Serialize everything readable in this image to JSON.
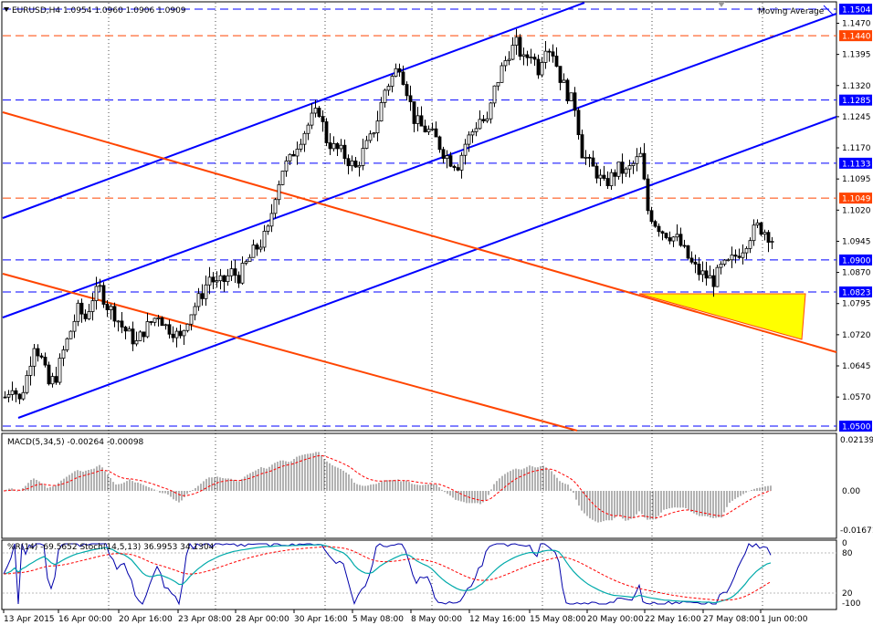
{
  "header": {
    "symbol_line": "EURUSD,H4  1.0954 1.0960 1.0906 1.0909",
    "indicator_label": "Moving Average",
    "macd_label": "MACD(5,34,5) -0.00264 -0.00098",
    "wr_label": "%R(14) -69.5652  Stoch(14,5,13) 36.9953 34.1304"
  },
  "colors": {
    "background": "#ffffff",
    "candles": "#000000",
    "blue_lines": "#0000ff",
    "red_lines": "#ff4500",
    "triangle_fill": "#ffff00",
    "stoch_main": "#00aaaa",
    "stoch_signal": "#ff0000",
    "price_tag": "#0000ff",
    "red_tag": "#ff4500"
  },
  "chart_data": {
    "type": "candlestick",
    "symbol": "EURUSD",
    "timeframe": "H4",
    "ohlc_last": {
      "open": 1.0954,
      "high": 1.096,
      "low": 1.0906,
      "close": 1.0909
    },
    "y_ticks": [
      "1.1470",
      "1.1395",
      "1.1320",
      "1.1245",
      "1.1170",
      "1.1095",
      "1.1020",
      "1.0945",
      "1.0870",
      "1.0795",
      "1.0720",
      "1.0645",
      "1.0570"
    ],
    "y_range": [
      1.05,
      1.1504
    ],
    "x_labels": [
      "13 Apr 2015",
      "16 Apr 00:00",
      "20 Apr 16:00",
      "23 Apr 08:00",
      "28 Apr 00:00",
      "30 Apr 16:00",
      "5 May 08:00",
      "8 May 00:00",
      "12 May 16:00",
      "15 May 08:00",
      "20 May 00:00",
      "22 May 16:00",
      "27 May 08:00",
      "1 Jun 00:00"
    ],
    "levels": [
      {
        "label": "1.1504",
        "value": 1.1504,
        "color": "#0000ff"
      },
      {
        "label": "1.1440",
        "value": 1.144,
        "color": "#ff4500"
      },
      {
        "label": "1.1285",
        "value": 1.1285,
        "color": "#0000ff"
      },
      {
        "label": "1.1133",
        "value": 1.1133,
        "color": "#0000ff"
      },
      {
        "label": "1.1049",
        "value": 1.1049,
        "color": "#ff4500"
      },
      {
        "label": "1.0900",
        "value": 1.09,
        "color": "#0000ff"
      },
      {
        "label": "1.0823",
        "value": 1.0823,
        "color": "#0000ff"
      },
      {
        "label": "1.0500",
        "value": 1.05,
        "color": "#0000ff"
      }
    ],
    "price_path": [
      [
        0,
        1.057
      ],
      [
        8,
        1.06
      ],
      [
        16,
        1.056
      ],
      [
        24,
        1.062
      ],
      [
        32,
        1.07
      ],
      [
        40,
        1.066
      ],
      [
        48,
        1.06
      ],
      [
        56,
        1.062
      ],
      [
        64,
        1.068
      ],
      [
        72,
        1.073
      ],
      [
        80,
        1.078
      ],
      [
        88,
        1.076
      ],
      [
        96,
        1.081
      ],
      [
        104,
        1.083
      ],
      [
        112,
        1.079
      ],
      [
        120,
        1.077
      ],
      [
        128,
        1.074
      ],
      [
        136,
        1.072
      ],
      [
        144,
        1.07
      ],
      [
        152,
        1.073
      ],
      [
        160,
        1.075
      ],
      [
        168,
        1.077
      ],
      [
        176,
        1.074
      ],
      [
        184,
        1.073
      ],
      [
        192,
        1.071
      ],
      [
        200,
        1.076
      ],
      [
        208,
        1.079
      ],
      [
        216,
        1.082
      ],
      [
        224,
        1.086
      ],
      [
        232,
        1.084
      ],
      [
        240,
        1.085
      ],
      [
        248,
        1.087
      ],
      [
        256,
        1.086
      ],
      [
        264,
        1.089
      ],
      [
        272,
        1.092
      ],
      [
        280,
        1.094
      ],
      [
        288,
        1.097
      ],
      [
        296,
        1.106
      ],
      [
        304,
        1.112
      ],
      [
        312,
        1.114
      ],
      [
        320,
        1.118
      ],
      [
        328,
        1.121
      ],
      [
        336,
        1.124
      ],
      [
        344,
        1.126
      ],
      [
        352,
        1.119
      ],
      [
        360,
        1.117
      ],
      [
        368,
        1.116
      ],
      [
        376,
        1.114
      ],
      [
        384,
        1.112
      ],
      [
        392,
        1.116
      ],
      [
        400,
        1.119
      ],
      [
        408,
        1.124
      ],
      [
        416,
        1.131
      ],
      [
        424,
        1.134
      ],
      [
        432,
        1.137
      ],
      [
        440,
        1.131
      ],
      [
        448,
        1.124
      ],
      [
        456,
        1.122
      ],
      [
        464,
        1.121
      ],
      [
        472,
        1.119
      ],
      [
        480,
        1.116
      ],
      [
        488,
        1.114
      ],
      [
        496,
        1.113
      ],
      [
        504,
        1.118
      ],
      [
        512,
        1.121
      ],
      [
        520,
        1.124
      ],
      [
        528,
        1.123
      ],
      [
        536,
        1.131
      ],
      [
        544,
        1.136
      ],
      [
        552,
        1.14
      ],
      [
        560,
        1.142
      ],
      [
        568,
        1.138
      ],
      [
        576,
        1.14
      ],
      [
        584,
        1.136
      ],
      [
        592,
        1.142
      ],
      [
        600,
        1.14
      ],
      [
        608,
        1.134
      ],
      [
        616,
        1.13
      ],
      [
        624,
        1.127
      ],
      [
        632,
        1.116
      ],
      [
        640,
        1.113
      ],
      [
        648,
        1.111
      ],
      [
        656,
        1.108
      ],
      [
        664,
        1.11
      ],
      [
        672,
        1.112
      ],
      [
        680,
        1.111
      ],
      [
        688,
        1.113
      ],
      [
        696,
        1.115
      ],
      [
        704,
        1.102
      ],
      [
        712,
        1.099
      ],
      [
        720,
        1.097
      ],
      [
        728,
        1.096
      ],
      [
        736,
        1.095
      ],
      [
        744,
        1.092
      ],
      [
        752,
        1.089
      ],
      [
        760,
        1.087
      ],
      [
        768,
        1.086
      ],
      [
        776,
        1.085
      ],
      [
        784,
        1.088
      ],
      [
        792,
        1.089
      ],
      [
        800,
        1.091
      ],
      [
        808,
        1.093
      ],
      [
        816,
        1.096
      ],
      [
        824,
        1.098
      ],
      [
        832,
        1.097
      ],
      [
        840,
        1.095
      ],
      [
        844,
        1.091
      ]
    ],
    "macd": {
      "label": "MACD(5,34,5)",
      "main": -0.00264,
      "signal": -0.00098,
      "ticks": [
        "0.02139",
        "0.00",
        "-0.01671"
      ]
    },
    "oscillator": {
      "wr": -69.5652,
      "stoch_main": 36.9953,
      "stoch_signal": 34.1304,
      "ticks": [
        "0",
        "20",
        "80",
        "-100"
      ]
    }
  }
}
